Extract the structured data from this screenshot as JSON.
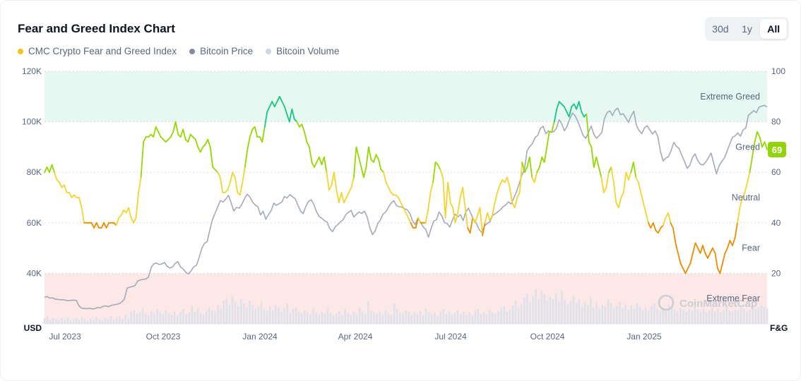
{
  "header": {
    "title": "Fear and Greed Index Chart",
    "range_tabs": [
      {
        "label": "30d",
        "active": false
      },
      {
        "label": "1y",
        "active": false
      },
      {
        "label": "All",
        "active": true
      }
    ]
  },
  "legend": [
    {
      "label": "CMC Crypto Fear and Greed Index",
      "color": "#f0c419"
    },
    {
      "label": "Bitcoin Price",
      "color": "#858ca2"
    },
    {
      "label": "Bitcoin Volume",
      "color": "#cfd6e4"
    }
  ],
  "current_badge": {
    "value": "69",
    "color": "#93d30c"
  },
  "watermark": "CoinMarketCap",
  "chart_data": {
    "type": "line",
    "x_ticks": [
      "Jul 2023",
      "Oct 2023",
      "Jan 2024",
      "Apr 2024",
      "Jul 2024",
      "Oct 2024",
      "Jan 2025"
    ],
    "left_axis": {
      "label": "USD",
      "ticks": [
        "40K",
        "60K",
        "80K",
        "100K",
        "120K"
      ],
      "range": [
        20000,
        120000
      ]
    },
    "right_axis": {
      "label": "F&G",
      "ticks": [
        "20",
        "40",
        "60",
        "80",
        "100"
      ],
      "range": [
        0,
        100
      ]
    },
    "zones": {
      "extreme_greed": {
        "label": "Extreme Greed",
        "from": 80,
        "to": 100,
        "color": "#e6f8f1"
      },
      "greed": {
        "label": "Greed",
        "value": 70
      },
      "neutral": {
        "label": "Neutral",
        "value": 50
      },
      "fear": {
        "label": "Fear",
        "value": 30
      },
      "extreme_fear": {
        "label": "Extreme Fear",
        "from": 0,
        "to": 20,
        "color": "#fde8e8"
      }
    },
    "fg_colors": {
      "extreme_fear": "#ea3943",
      "fear": "#ea8c00",
      "neutral": "#f3d42f",
      "greed": "#93d900",
      "extreme_greed": "#16c784"
    },
    "series": [
      {
        "name": "CMC Crypto Fear and Greed Index",
        "axis": "right",
        "values": [
          60,
          62,
          60,
          63,
          60,
          57,
          56,
          54,
          55,
          52,
          52,
          50,
          51,
          50,
          50,
          46,
          40,
          40,
          40,
          40,
          38,
          40,
          38,
          38,
          40,
          38,
          40,
          40,
          40,
          39,
          42,
          43,
          45,
          44,
          46,
          42,
          40,
          42,
          52,
          58,
          72,
          74,
          74,
          75,
          74,
          78,
          76,
          74,
          73,
          72,
          73,
          74,
          76,
          80,
          75,
          74,
          77,
          73,
          72,
          75,
          74,
          73,
          70,
          68,
          70,
          71,
          73,
          70,
          62,
          61,
          60,
          58,
          52,
          52,
          53,
          56,
          60,
          58,
          52,
          51,
          56,
          62,
          69,
          74,
          77,
          78,
          74,
          74,
          72,
          78,
          84,
          86,
          88,
          86,
          88,
          90,
          88,
          86,
          83,
          80,
          85,
          81,
          80,
          78,
          79,
          76,
          72,
          70,
          64,
          62,
          64,
          66,
          63,
          66,
          60,
          53,
          55,
          60,
          53,
          48,
          52,
          48,
          50,
          52,
          54,
          58,
          70,
          66,
          62,
          58,
          62,
          70,
          65,
          64,
          67,
          65,
          61,
          60,
          56,
          54,
          52,
          51,
          51,
          50,
          48,
          46,
          44,
          42,
          40,
          38,
          38,
          42,
          40,
          40,
          40,
          45,
          52,
          56,
          64,
          63,
          61,
          58,
          42,
          56,
          48,
          46,
          40,
          44,
          50,
          54,
          46,
          38,
          36,
          42,
          40,
          43,
          46,
          35,
          40,
          44,
          41,
          43,
          48,
          52,
          55,
          57,
          56,
          58,
          54,
          48,
          46,
          50,
          52,
          64,
          60,
          62,
          66,
          58,
          56,
          60,
          62,
          66,
          64,
          70,
          76,
          76,
          80,
          85,
          88,
          87,
          86,
          84,
          82,
          86,
          87,
          85,
          88,
          84,
          82,
          83,
          72,
          70,
          62,
          66,
          62,
          58,
          52,
          54,
          60,
          62,
          56,
          48,
          46,
          50,
          52,
          60,
          57,
          60,
          64,
          58,
          56,
          52,
          48,
          44,
          40,
          38,
          40,
          37,
          36,
          38,
          39,
          42,
          44,
          40,
          38,
          32,
          28,
          24,
          22,
          20,
          22,
          24,
          28,
          32,
          30,
          28,
          31,
          28,
          26,
          28,
          30,
          28,
          22,
          20,
          24,
          28,
          30,
          33,
          31,
          34,
          40,
          46,
          50,
          52,
          56,
          60,
          66,
          72,
          76,
          74,
          70,
          72,
          69
        ]
      },
      {
        "name": "Bitcoin Price",
        "axis": "left",
        "values": [
          30500,
          30800,
          30200,
          30300,
          29800,
          29700,
          29500,
          29600,
          29300,
          29200,
          29300,
          29400,
          29200,
          27000,
          26200,
          26100,
          26000,
          26200,
          25900,
          26100,
          26500,
          26300,
          27000,
          27100,
          26800,
          27300,
          27500,
          27700,
          28000,
          28700,
          29900,
          34200,
          34500,
          34800,
          35200,
          37000,
          37400,
          37600,
          37800,
          38500,
          42300,
          43800,
          44100,
          43500,
          43700,
          44300,
          42800,
          42100,
          42500,
          43900,
          44700,
          42500,
          41800,
          40300,
          39800,
          41000,
          42600,
          43200,
          46200,
          49900,
          51900,
          52500,
          57100,
          61300,
          63800,
          66400,
          68800,
          68200,
          69400,
          70900,
          68000,
          64700,
          66100,
          65800,
          67200,
          69600,
          71300,
          70300,
          68300,
          67100,
          66400,
          63100,
          64600,
          61400,
          63200,
          64800,
          67800,
          66900,
          67600,
          68200,
          70400,
          69800,
          71200,
          70300,
          69600,
          67100,
          64700,
          63600,
          66400,
          68500,
          69100,
          67300,
          64500,
          62500,
          61800,
          60800,
          60300,
          57700,
          56500,
          58400,
          59300,
          60400,
          61200,
          63200,
          64200,
          64900,
          62300,
          63400,
          64300,
          63700,
          64600,
          62300,
          58200,
          55300,
          56800,
          59700,
          61200,
          63500,
          64300,
          66200,
          67800,
          68800,
          66800,
          66400,
          66200,
          65600,
          65200,
          63800,
          60900,
          59300,
          61800,
          60300,
          58400,
          57400,
          54300,
          57800,
          60700,
          61200,
          64300,
          62700,
          60100,
          59700,
          58300,
          61200,
          63400,
          62400,
          63200,
          60900,
          64300,
          65800,
          63400,
          61200,
          59800,
          57300,
          56100,
          58800,
          59700,
          60400,
          62800,
          63600,
          64300,
          65200,
          66400,
          67100,
          68300,
          67400,
          69800,
          72300,
          75400,
          78800,
          81200,
          88600,
          90200,
          91400,
          93800,
          94600,
          97400,
          98200,
          95300,
          96400,
          95800,
          96100,
          97500,
          100800,
          99200,
          96400,
          98300,
          101200,
          103500,
          102400,
          100200,
          97400,
          94600,
          93400,
          95800,
          98300,
          95200,
          93500,
          94500,
          95800,
          101200,
          103700,
          104300,
          102500,
          104600,
          105400,
          102800,
          103200,
          101600,
          99800,
          102300,
          104200,
          98600,
          96500,
          95300,
          97600,
          98400,
          96800,
          95200,
          96400,
          94300,
          88300,
          84500,
          85600,
          86200,
          88600,
          91800,
          90300,
          89400,
          86800,
          84300,
          81600,
          82700,
          85900,
          87300,
          84600,
          83200,
          82900,
          84100,
          85800,
          87600,
          83500,
          79400,
          82600,
          84300,
          85700,
          88400,
          91200,
          93800,
          94400,
          95600,
          94300,
          96800,
          97500,
          102600,
          103500,
          104400,
          103600,
          105800,
          106200,
          106500,
          105800
        ]
      },
      {
        "name": "Bitcoin Volume",
        "axis": "left",
        "values": [
          2.1,
          2.8,
          1.6,
          2.4,
          1.9,
          1.3,
          2.2,
          1.7,
          2.5,
          1.4,
          1.8,
          2.3,
          1.5,
          2.6,
          1.9,
          1.2,
          2.0,
          1.6,
          2.7,
          1.8,
          1.4,
          2.3,
          1.9,
          3.1,
          1.7,
          2.4,
          2.9,
          1.8,
          3.6,
          2.2,
          4.8,
          5.2,
          3.9,
          4.4,
          6.1,
          4.0,
          3.2,
          4.9,
          3.7,
          5.8,
          4.6,
          3.9,
          5.3,
          4.1,
          3.5,
          4.8,
          3.2,
          4.4,
          5.6,
          3.8,
          4.3,
          6.9,
          4.5,
          5.8,
          4.1,
          3.6,
          4.9,
          6.3,
          5.2,
          4.8,
          7.4,
          6.1,
          8.8,
          9.6,
          7.2,
          10.4,
          8.1,
          6.9,
          9.3,
          7.8,
          6.4,
          8.9,
          7.1,
          5.8,
          6.6,
          8.2,
          5.4,
          4.9,
          6.8,
          5.1,
          7.4,
          6.2,
          4.6,
          5.9,
          7.6,
          4.3,
          5.6,
          6.4,
          4.8,
          3.9,
          5.2,
          4.4,
          3.7,
          5.9,
          4.2,
          3.6,
          4.7,
          3.9,
          5.6,
          4.4,
          3.2,
          3.9,
          4.8,
          3.5,
          5.7,
          4.1,
          3.3,
          4.6,
          3.8,
          6.2,
          4.9,
          3.7,
          8.6,
          5.2,
          4.4,
          3.8,
          4.9,
          3.6,
          5.3,
          4.1,
          3.4,
          7.8,
          5.6,
          4.3,
          3.9,
          5.1,
          4.6,
          3.5,
          4.2,
          3.7,
          4.9,
          3.4,
          5.8,
          4.5,
          3.6,
          4.3,
          3.1,
          4.7,
          5.6,
          3.9,
          4.8,
          3.6,
          4.2,
          5.3,
          3.8,
          4.6,
          3.5,
          4.4,
          3.2,
          4.9,
          5.7,
          3.9,
          4.5,
          3.6,
          5.4,
          4.3,
          3.8,
          4.7,
          5.9,
          6.8,
          4.6,
          5.4,
          7.2,
          8.9,
          6.4,
          7.6,
          9.8,
          11.6,
          8.3,
          10.7,
          13.4,
          9.6,
          12.8,
          11.2,
          8.8,
          10.1,
          9.4,
          11.8,
          8.6,
          12.6,
          9.3,
          7.4,
          8.8,
          10.6,
          7.9,
          9.4,
          6.8,
          8.3,
          7.2,
          9.7,
          6.4,
          8.1,
          5.9,
          7.3,
          6.6,
          9.2,
          7.8,
          5.9,
          6.8,
          8.4,
          6.1,
          7.6,
          5.4,
          6.9,
          5.8,
          7.9,
          6.6,
          5.3,
          6.4,
          5.1,
          6.8,
          7.7,
          5.6,
          4.9,
          6.2,
          5.8,
          7.3,
          6.4,
          5.5,
          4.8,
          6.1,
          5.3,
          4.6,
          5.8,
          4.9,
          6.6,
          5.4,
          4.7,
          5.9,
          4.4,
          5.2,
          6.1,
          4.8,
          5.7,
          4.5,
          5.3,
          6.4,
          5.1,
          4.6,
          5.5,
          4.9,
          6.2,
          5.6,
          4.8,
          5.3,
          6.7,
          5.8,
          6.3,
          7.1,
          6.4,
          5.9
        ]
      }
    ]
  }
}
